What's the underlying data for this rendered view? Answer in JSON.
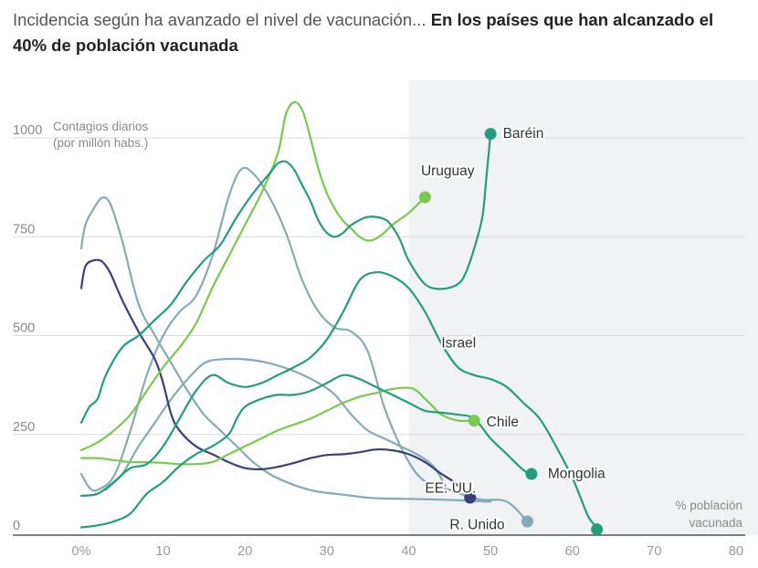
{
  "title": {
    "lead": "Incidencia según ha avanzado el nivel de vacunación...",
    "highlight": "En los países que han alcanzado el 40% de población vacunada"
  },
  "chart_data": {
    "type": "line",
    "ylabel_lines": [
      "Contagios diarios",
      "(por millón habs.)"
    ],
    "xlabel_lines": [
      "% población",
      "vacunada"
    ],
    "xlim": [
      -5,
      82
    ],
    "ylim": [
      -30,
      1120
    ],
    "y_ticks": [
      {
        "value": 0,
        "label": "0"
      },
      {
        "value": 250,
        "label": "250"
      },
      {
        "value": 500,
        "label": "500"
      },
      {
        "value": 750,
        "label": "750"
      },
      {
        "value": 1000,
        "label": "1000"
      }
    ],
    "x_ticks": [
      {
        "value": 0,
        "label": "0%"
      },
      {
        "value": 10,
        "label": "10"
      },
      {
        "value": 20,
        "label": "20"
      },
      {
        "value": 30,
        "label": "30"
      },
      {
        "value": 40,
        "label": "40"
      },
      {
        "value": 50,
        "label": "50"
      },
      {
        "value": 60,
        "label": "60"
      },
      {
        "value": 70,
        "label": "70"
      },
      {
        "value": 80,
        "label": "80"
      }
    ],
    "shaded_region": {
      "x_from": 40,
      "x_to": 82,
      "color": "#f0f2f3"
    },
    "grid": true,
    "series": [
      {
        "name": "R. Unido",
        "color": "#86aab8",
        "end_marker": true,
        "points": [
          [
            0,
            150
          ],
          [
            1,
            115
          ],
          [
            2,
            110
          ],
          [
            4,
            145
          ],
          [
            6,
            260
          ],
          [
            8,
            400
          ],
          [
            10,
            500
          ],
          [
            12,
            560
          ],
          [
            14,
            600
          ],
          [
            16,
            700
          ],
          [
            18,
            850
          ],
          [
            19.5,
            920
          ],
          [
            21,
            910
          ],
          [
            23,
            850
          ],
          [
            25,
            760
          ],
          [
            27,
            640
          ],
          [
            29,
            560
          ],
          [
            31,
            520
          ],
          [
            33,
            510
          ],
          [
            35,
            460
          ],
          [
            37,
            320
          ],
          [
            39,
            220
          ],
          [
            41,
            150
          ],
          [
            43,
            120
          ],
          [
            45,
            110
          ],
          [
            47,
            95
          ],
          [
            49,
            85
          ],
          [
            52,
            80
          ],
          [
            54.5,
            30
          ]
        ]
      },
      {
        "name": "",
        "color": "#86aab8",
        "end_marker": false,
        "points": [
          [
            0,
            720
          ],
          [
            0.5,
            780
          ],
          [
            1.5,
            820
          ],
          [
            2.5,
            848
          ],
          [
            3.5,
            835
          ],
          [
            5,
            740
          ],
          [
            7,
            580
          ],
          [
            9,
            500
          ],
          [
            11,
            430
          ],
          [
            13,
            360
          ],
          [
            15,
            300
          ],
          [
            17,
            260
          ],
          [
            19,
            220
          ],
          [
            21,
            180
          ],
          [
            23,
            150
          ],
          [
            25,
            130
          ],
          [
            27,
            115
          ],
          [
            29,
            105
          ],
          [
            31,
            100
          ],
          [
            33,
            95
          ],
          [
            35,
            90
          ],
          [
            37,
            88
          ],
          [
            40,
            87
          ],
          [
            44,
            85
          ],
          [
            48,
            82
          ],
          [
            50,
            80
          ]
        ]
      },
      {
        "name": "",
        "color": "#86aab8",
        "end_marker": false,
        "points": [
          [
            3,
            110
          ],
          [
            5,
            150
          ],
          [
            7,
            220
          ],
          [
            9,
            280
          ],
          [
            11,
            340
          ],
          [
            13,
            390
          ],
          [
            15,
            430
          ],
          [
            17,
            440
          ],
          [
            20,
            440
          ],
          [
            23,
            430
          ],
          [
            26,
            410
          ],
          [
            29,
            380
          ],
          [
            31,
            350
          ],
          [
            33,
            300
          ],
          [
            35,
            260
          ],
          [
            37,
            240
          ],
          [
            39,
            220
          ],
          [
            41,
            200
          ],
          [
            43,
            170
          ],
          [
            44.5,
            120
          ]
        ]
      },
      {
        "name": "EE. UU.",
        "color": "#393f7a",
        "end_marker": true,
        "points": [
          [
            0,
            620
          ],
          [
            0.5,
            675
          ],
          [
            1.5,
            690
          ],
          [
            2.5,
            688
          ],
          [
            3.5,
            660
          ],
          [
            5,
            590
          ],
          [
            7,
            510
          ],
          [
            9,
            440
          ],
          [
            10,
            380
          ],
          [
            11,
            300
          ],
          [
            12,
            260
          ],
          [
            14,
            220
          ],
          [
            16,
            200
          ],
          [
            18,
            180
          ],
          [
            20,
            165
          ],
          [
            22,
            162
          ],
          [
            24,
            168
          ],
          [
            26,
            178
          ],
          [
            28,
            190
          ],
          [
            30,
            198
          ],
          [
            32,
            200
          ],
          [
            34,
            205
          ],
          [
            36,
            212
          ],
          [
            38,
            210
          ],
          [
            40,
            200
          ],
          [
            42,
            180
          ],
          [
            44,
            150
          ],
          [
            45.5,
            130
          ],
          [
            47.5,
            90
          ]
        ]
      },
      {
        "name": "Uruguay",
        "color": "#7ac94e",
        "end_marker": true,
        "points": [
          [
            0,
            210
          ],
          [
            2,
            230
          ],
          [
            4,
            260
          ],
          [
            6,
            300
          ],
          [
            8,
            360
          ],
          [
            10,
            420
          ],
          [
            12,
            470
          ],
          [
            14,
            530
          ],
          [
            16,
            620
          ],
          [
            18,
            700
          ],
          [
            20,
            780
          ],
          [
            22,
            860
          ],
          [
            24,
            960
          ],
          [
            25,
            1060
          ],
          [
            26,
            1090
          ],
          [
            27,
            1070
          ],
          [
            28,
            1000
          ],
          [
            29,
            920
          ],
          [
            30,
            860
          ],
          [
            31,
            820
          ],
          [
            32,
            790
          ],
          [
            33,
            770
          ],
          [
            34,
            750
          ],
          [
            35,
            740
          ],
          [
            36,
            745
          ],
          [
            37,
            760
          ],
          [
            38,
            780
          ],
          [
            40,
            810
          ],
          [
            42,
            850
          ]
        ]
      },
      {
        "name": "Chile",
        "color": "#7ac94e",
        "end_marker": true,
        "points": [
          [
            0,
            190
          ],
          [
            2,
            190
          ],
          [
            4,
            185
          ],
          [
            6,
            180
          ],
          [
            8,
            180
          ],
          [
            10,
            178
          ],
          [
            12,
            175
          ],
          [
            14,
            175
          ],
          [
            16,
            180
          ],
          [
            18,
            200
          ],
          [
            20,
            220
          ],
          [
            22,
            240
          ],
          [
            24,
            260
          ],
          [
            26,
            275
          ],
          [
            28,
            290
          ],
          [
            30,
            310
          ],
          [
            32,
            330
          ],
          [
            34,
            345
          ],
          [
            36,
            355
          ],
          [
            38,
            365
          ],
          [
            40,
            368
          ],
          [
            41,
            360
          ],
          [
            42,
            340
          ],
          [
            43,
            320
          ],
          [
            44,
            300
          ],
          [
            46,
            285
          ],
          [
            48,
            285
          ]
        ]
      },
      {
        "name": "Baréin",
        "color": "#219f7c",
        "end_marker": true,
        "points": [
          [
            0,
            280
          ],
          [
            1,
            320
          ],
          [
            2,
            340
          ],
          [
            3,
            400
          ],
          [
            5,
            470
          ],
          [
            7,
            500
          ],
          [
            9,
            540
          ],
          [
            11,
            580
          ],
          [
            13,
            640
          ],
          [
            15,
            690
          ],
          [
            17,
            730
          ],
          [
            19,
            800
          ],
          [
            21,
            860
          ],
          [
            23,
            910
          ],
          [
            24,
            935
          ],
          [
            25,
            940
          ],
          [
            26,
            920
          ],
          [
            27,
            880
          ],
          [
            28,
            840
          ],
          [
            29,
            790
          ],
          [
            30,
            760
          ],
          [
            31,
            750
          ],
          [
            32,
            760
          ],
          [
            33,
            780
          ],
          [
            35,
            800
          ],
          [
            37,
            795
          ],
          [
            38,
            775
          ],
          [
            39,
            740
          ],
          [
            40,
            690
          ],
          [
            42,
            630
          ],
          [
            44,
            618
          ],
          [
            46,
            630
          ],
          [
            47,
            660
          ],
          [
            48,
            720
          ],
          [
            49,
            800
          ],
          [
            49.5,
            900
          ],
          [
            50,
            1010
          ]
        ]
      },
      {
        "name": "Israel",
        "color": "#219f7c",
        "end_marker": false,
        "label_only": true,
        "points": [
          [
            0,
            95
          ],
          [
            2,
            100
          ],
          [
            4,
            130
          ],
          [
            6,
            165
          ],
          [
            8,
            175
          ],
          [
            10,
            220
          ],
          [
            12,
            290
          ],
          [
            14,
            360
          ],
          [
            16,
            400
          ],
          [
            18,
            380
          ],
          [
            20,
            370
          ],
          [
            22,
            380
          ],
          [
            24,
            400
          ],
          [
            26,
            420
          ],
          [
            28,
            445
          ],
          [
            30,
            490
          ],
          [
            32,
            560
          ],
          [
            34,
            640
          ],
          [
            36,
            660
          ],
          [
            38,
            650
          ],
          [
            40,
            620
          ],
          [
            42,
            560
          ],
          [
            44,
            480
          ],
          [
            46,
            420
          ],
          [
            48,
            400
          ],
          [
            50,
            390
          ],
          [
            52,
            370
          ],
          [
            54,
            330
          ],
          [
            56,
            290
          ],
          [
            58,
            220
          ],
          [
            60,
            140
          ],
          [
            61,
            90
          ],
          [
            62,
            40
          ],
          [
            63,
            15
          ]
        ]
      },
      {
        "name": "Mongolia",
        "color": "#219f7c",
        "end_marker": true,
        "points": [
          [
            0,
            15
          ],
          [
            2,
            20
          ],
          [
            4,
            30
          ],
          [
            6,
            50
          ],
          [
            8,
            100
          ],
          [
            10,
            130
          ],
          [
            12,
            170
          ],
          [
            14,
            200
          ],
          [
            16,
            220
          ],
          [
            18,
            250
          ],
          [
            19,
            290
          ],
          [
            20,
            320
          ],
          [
            22,
            340
          ],
          [
            24,
            350
          ],
          [
            26,
            350
          ],
          [
            28,
            360
          ],
          [
            30,
            380
          ],
          [
            32,
            400
          ],
          [
            34,
            390
          ],
          [
            36,
            370
          ],
          [
            38,
            350
          ],
          [
            40,
            330
          ],
          [
            42,
            310
          ],
          [
            44,
            305
          ],
          [
            46,
            300
          ],
          [
            48,
            290
          ],
          [
            50,
            240
          ],
          [
            52,
            200
          ],
          [
            54,
            160
          ],
          [
            55,
            150
          ]
        ]
      }
    ],
    "marker_tracks": [
      {
        "color": "#219f7c",
        "point": [
          63,
          10
        ]
      }
    ],
    "labels": [
      {
        "text": "Baréin",
        "x": 51.5,
        "y": 1000
      },
      {
        "text": "Uruguay",
        "x": 41.5,
        "y": 905
      },
      {
        "text": "Israel",
        "x": 44,
        "y": 470
      },
      {
        "text": "Chile",
        "x": 49.5,
        "y": 270
      },
      {
        "text": "Mongolia",
        "x": 57,
        "y": 140
      },
      {
        "text": "EE. UU.",
        "x": 42,
        "y": 103
      },
      {
        "text": "R. Unido",
        "x": 45,
        "y": 10
      }
    ]
  }
}
